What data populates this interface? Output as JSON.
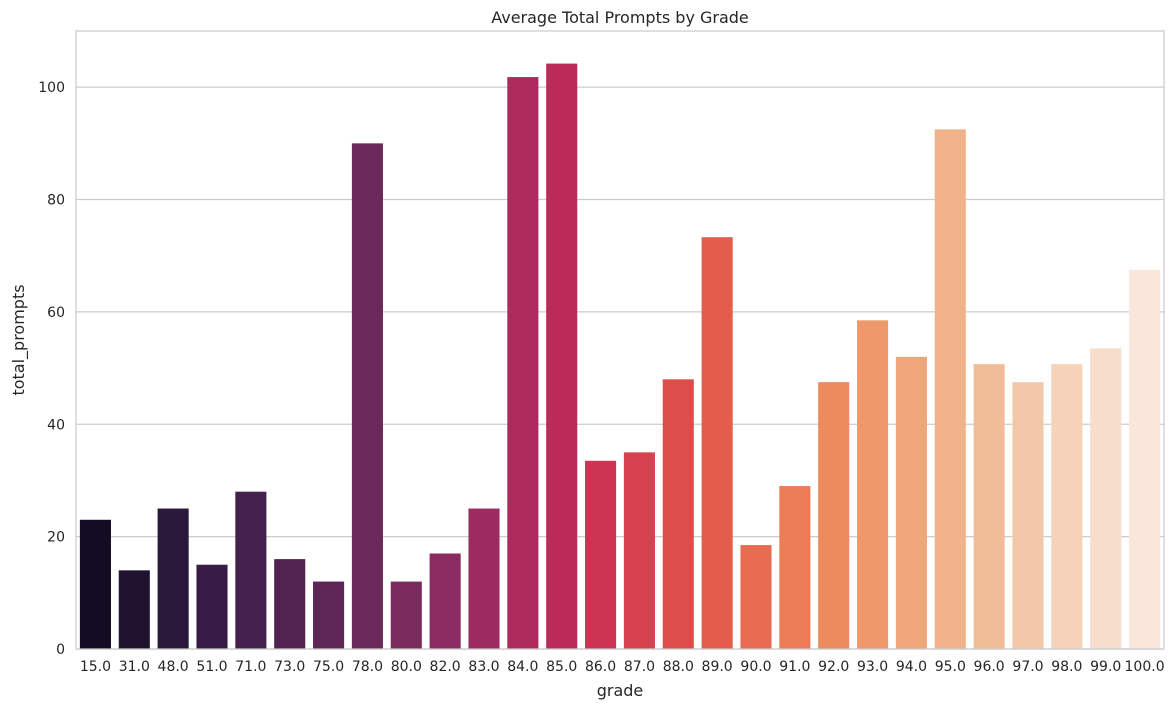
{
  "chart_data": {
    "type": "bar",
    "title": "Average Total Prompts by Grade",
    "xlabel": "grade",
    "ylabel": "total_prompts",
    "categories": [
      "15.0",
      "31.0",
      "48.0",
      "51.0",
      "71.0",
      "73.0",
      "75.0",
      "78.0",
      "80.0",
      "82.0",
      "83.0",
      "84.0",
      "85.0",
      "86.0",
      "87.0",
      "88.0",
      "89.0",
      "90.0",
      "91.0",
      "92.0",
      "93.0",
      "94.0",
      "95.0",
      "96.0",
      "97.0",
      "98.0",
      "99.0",
      "100.0"
    ],
    "values": [
      23,
      14,
      25,
      15,
      28,
      16,
      12,
      90,
      12,
      17,
      25,
      101.8,
      104.2,
      33.5,
      35,
      48,
      73.3,
      18.5,
      29,
      47.5,
      58.5,
      52,
      92.5,
      50.7,
      47.5,
      50.7,
      53.5,
      67.5
    ],
    "ylim": [
      0,
      110
    ],
    "yticks": [
      0,
      20,
      40,
      60,
      80,
      100
    ],
    "grid": "horizontal",
    "palette": [
      "#120d22",
      "#1f1330",
      "#2b193c",
      "#371c45",
      "#44204c",
      "#512351",
      "#5e2656",
      "#6b285a",
      "#7b2a5e",
      "#8c2b5f",
      "#9c2b5f",
      "#ac2a5c",
      "#bc2b58",
      "#cc3454",
      "#d5414f",
      "#dd4e4b",
      "#e35d4a",
      "#e86c4f",
      "#eb7c56",
      "#ed8b5f",
      "#ee996b",
      "#efa67a",
      "#f0b28a",
      "#f1bd99",
      "#f3c8aa",
      "#f5d2ba",
      "#f7ddcb",
      "#f9e7dc"
    ]
  }
}
